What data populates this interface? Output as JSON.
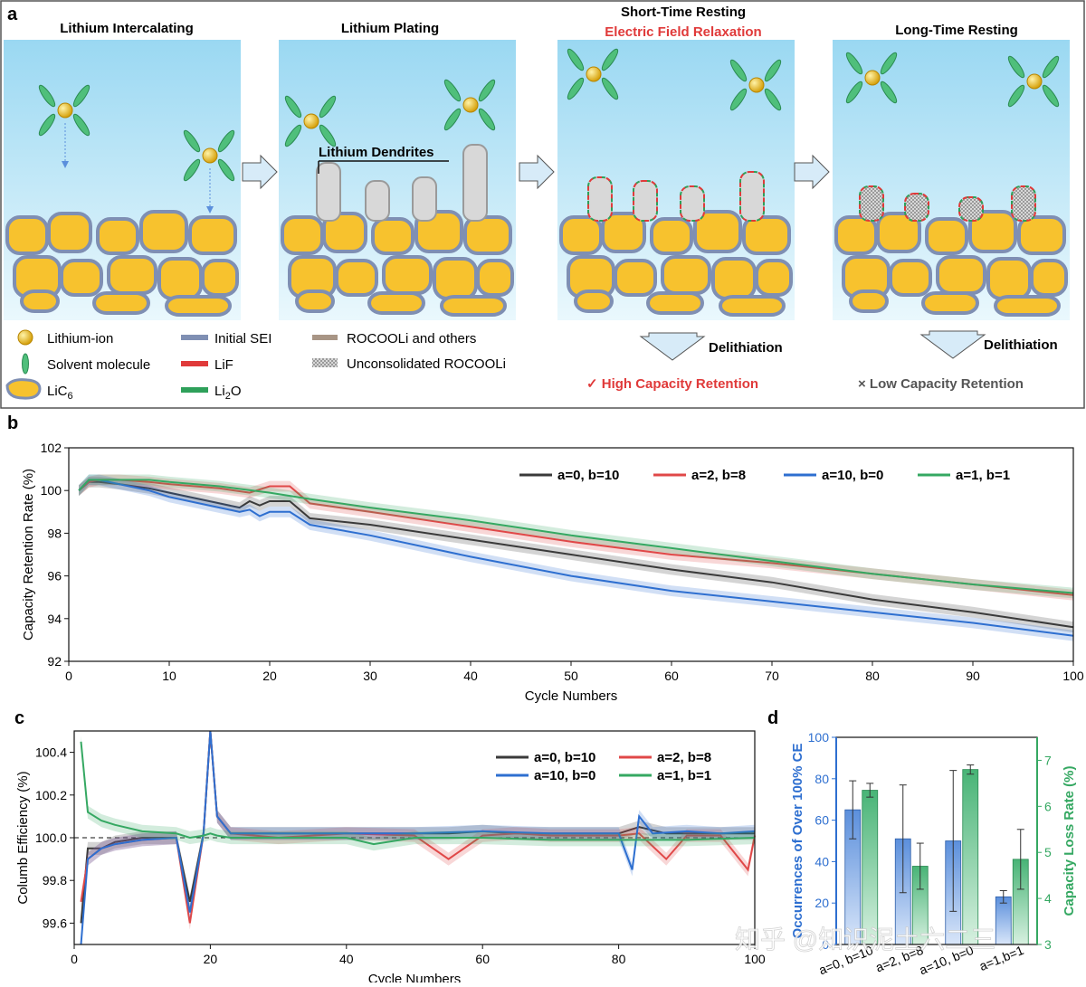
{
  "panel_a": {
    "letter": "a",
    "stages": [
      {
        "title": "Lithium Intercalating"
      },
      {
        "title": "Lithium Plating",
        "callout": "Lithium Dendrites"
      },
      {
        "title": "Short-Time Resting",
        "subtitle": "Electric Field Relaxation",
        "arrow_label": "Delithiation",
        "result": "✓ High  Capacity Retention",
        "result_color": "#e03a3a"
      },
      {
        "title": "Long-Time Resting",
        "arrow_label": "Delithiation",
        "result": "× Low  Capacity Retention",
        "result_color": "#555555"
      }
    ],
    "legend": [
      {
        "label": "Lithium-ion",
        "icon": "lithium-ion-icon"
      },
      {
        "label": "Solvent molecule",
        "icon": "solvent-molecule-icon"
      },
      {
        "label": "LiC",
        "sub": "6",
        "icon": "lic6-icon"
      },
      {
        "label": "Initial SEI",
        "color": "#7f8fb3"
      },
      {
        "label": "LiF",
        "color": "#e03a3a"
      },
      {
        "label": "Li",
        "sub": "2",
        "suffix": "O",
        "color": "#2ea05a"
      },
      {
        "label": "ROCOOLi and others",
        "color": "#a89585"
      },
      {
        "label": "Unconsolidated ROCOOLi",
        "color": "#bdbdbd"
      }
    ]
  },
  "chart_data": [
    {
      "panel": "b",
      "type": "line",
      "xlabel": "Cycle Numbers",
      "ylabel": "Capacity Retention Rate (%)",
      "xlim": [
        0,
        100
      ],
      "ylim": [
        92,
        102
      ],
      "xticks": [
        0,
        10,
        20,
        30,
        40,
        50,
        60,
        70,
        80,
        90,
        100
      ],
      "yticks": [
        92,
        94,
        96,
        98,
        100,
        102
      ],
      "legend_position": "top-right",
      "series": [
        {
          "name": "a=0, b=10",
          "color": "#3a3a3a",
          "x": [
            1,
            2,
            3,
            5,
            8,
            10,
            15,
            17,
            18,
            19,
            20,
            22,
            24,
            30,
            40,
            50,
            60,
            70,
            80,
            90,
            100
          ],
          "y": [
            100.0,
            100.4,
            100.4,
            100.3,
            100.1,
            99.9,
            99.4,
            99.2,
            99.5,
            99.3,
            99.5,
            99.5,
            98.7,
            98.4,
            97.7,
            97.0,
            96.3,
            95.7,
            94.9,
            94.3,
            93.6
          ]
        },
        {
          "name": "a=2, b=8",
          "color": "#e04848",
          "x": [
            1,
            2,
            3,
            5,
            8,
            10,
            15,
            18,
            20,
            22,
            24,
            30,
            40,
            50,
            60,
            70,
            80,
            90,
            100
          ],
          "y": [
            100.0,
            100.4,
            100.5,
            100.5,
            100.4,
            100.3,
            100.1,
            99.9,
            100.2,
            100.2,
            99.4,
            99.0,
            98.3,
            97.6,
            97.0,
            96.6,
            96.1,
            95.6,
            95.1
          ]
        },
        {
          "name": "a=10, b=0",
          "color": "#2e6fd0",
          "x": [
            1,
            2,
            3,
            5,
            8,
            10,
            15,
            17,
            18,
            19,
            20,
            22,
            24,
            30,
            40,
            50,
            60,
            70,
            80,
            90,
            100
          ],
          "y": [
            100.0,
            100.5,
            100.5,
            100.3,
            100.0,
            99.7,
            99.2,
            99.0,
            99.1,
            98.8,
            99.0,
            99.0,
            98.4,
            97.9,
            96.9,
            96.0,
            95.3,
            94.8,
            94.3,
            93.8,
            93.2
          ]
        },
        {
          "name": "a=1, b=1",
          "color": "#35a862",
          "x": [
            1,
            2,
            3,
            5,
            8,
            10,
            15,
            20,
            24,
            30,
            40,
            50,
            60,
            70,
            80,
            90,
            100
          ],
          "y": [
            100.0,
            100.5,
            100.5,
            100.5,
            100.5,
            100.4,
            100.2,
            99.9,
            99.6,
            99.2,
            98.6,
            97.9,
            97.3,
            96.7,
            96.1,
            95.6,
            95.2
          ]
        }
      ]
    },
    {
      "panel": "c",
      "type": "line",
      "xlabel": "Cycle Numbers",
      "ylabel": "Columb Efficiency (%)",
      "xlim": [
        0,
        100
      ],
      "ylim": [
        99.5,
        100.5
      ],
      "xticks": [
        0,
        20,
        40,
        60,
        80,
        100
      ],
      "yticks": [
        99.6,
        99.8,
        100.0,
        100.2,
        100.4
      ],
      "reference_line": 100.0,
      "legend_position": "top-right",
      "series": [
        {
          "name": "a=0, b=10",
          "color": "#3a3a3a",
          "x": [
            1,
            2,
            4,
            6,
            10,
            15,
            17,
            19,
            20,
            21,
            23,
            30,
            40,
            50,
            55,
            60,
            65,
            70,
            80,
            83,
            87,
            90,
            95,
            100
          ],
          "y": [
            99.6,
            99.95,
            99.95,
            99.98,
            100.0,
            100.0,
            99.7,
            100.02,
            100.5,
            100.1,
            100.02,
            100.02,
            100.02,
            100.02,
            100.02,
            100.03,
            100.02,
            100.02,
            100.02,
            100.05,
            100.02,
            100.02,
            100.02,
            100.02
          ]
        },
        {
          "name": "a=2, b=8",
          "color": "#e04848",
          "x": [
            1,
            2,
            4,
            6,
            10,
            15,
            17,
            19,
            20,
            21,
            23,
            30,
            40,
            50,
            55,
            60,
            65,
            70,
            80,
            83,
            87,
            90,
            95,
            99,
            100
          ],
          "y": [
            99.7,
            99.9,
            99.95,
            99.97,
            99.99,
            100.0,
            99.6,
            100.02,
            100.5,
            100.1,
            100.02,
            100.0,
            100.02,
            100.01,
            99.9,
            100.01,
            100.02,
            100.01,
            100.01,
            100.02,
            99.9,
            100.01,
            100.01,
            99.85,
            100.01
          ]
        },
        {
          "name": "a=10, b=0",
          "color": "#2e6fd0",
          "x": [
            1,
            2,
            4,
            6,
            10,
            15,
            17,
            19,
            20,
            21,
            23,
            30,
            40,
            50,
            60,
            70,
            80,
            82,
            83,
            85,
            90,
            95,
            100
          ],
          "y": [
            99.5,
            99.9,
            99.95,
            99.97,
            99.99,
            100.0,
            99.65,
            100.02,
            100.5,
            100.1,
            100.02,
            100.02,
            100.02,
            100.02,
            100.03,
            100.02,
            100.02,
            99.85,
            100.1,
            100.02,
            100.03,
            100.02,
            100.03
          ]
        },
        {
          "name": "a=1, b=1",
          "color": "#35a862",
          "x": [
            1,
            2,
            4,
            6,
            10,
            15,
            17,
            19,
            20,
            21,
            23,
            30,
            40,
            44,
            50,
            60,
            70,
            80,
            90,
            100
          ],
          "y": [
            100.45,
            100.12,
            100.08,
            100.06,
            100.03,
            100.02,
            100.0,
            100.01,
            100.02,
            100.01,
            100.0,
            100.0,
            100.0,
            99.97,
            100.0,
            100.0,
            99.99,
            99.99,
            99.99,
            100.0
          ]
        }
      ]
    },
    {
      "panel": "d",
      "type": "bar",
      "categories": [
        "a=0, b=10",
        "a=2, b=8",
        "a=10, b=0",
        "a=1,b=1"
      ],
      "left_axis": {
        "label": "Occurrences of Over 100% CE",
        "ylim": [
          0,
          100
        ],
        "ticks": [
          0,
          20,
          40,
          60,
          80,
          100
        ],
        "color": "#2e6fd0"
      },
      "right_axis": {
        "label": "Capacity Loss Rate (%)",
        "ylim": [
          3,
          7.5
        ],
        "ticks": [
          3,
          4,
          5,
          6,
          7
        ],
        "color": "#35a862"
      },
      "series": [
        {
          "name": "Occurrences of Over 100% CE",
          "axis": "left",
          "color": "#5b8fdc",
          "values": [
            65,
            51,
            50,
            23
          ],
          "errors": [
            14,
            26,
            34,
            3
          ]
        },
        {
          "name": "Capacity Loss Rate (%)",
          "axis": "right",
          "color": "#5cbf82",
          "values": [
            6.35,
            4.7,
            6.8,
            4.85
          ],
          "errors": [
            0.15,
            0.5,
            0.1,
            0.65
          ]
        }
      ]
    }
  ],
  "panel_letters": {
    "b": "b",
    "c": "c",
    "d": "d"
  },
  "watermark": "知乎 @知识泥土六二三"
}
